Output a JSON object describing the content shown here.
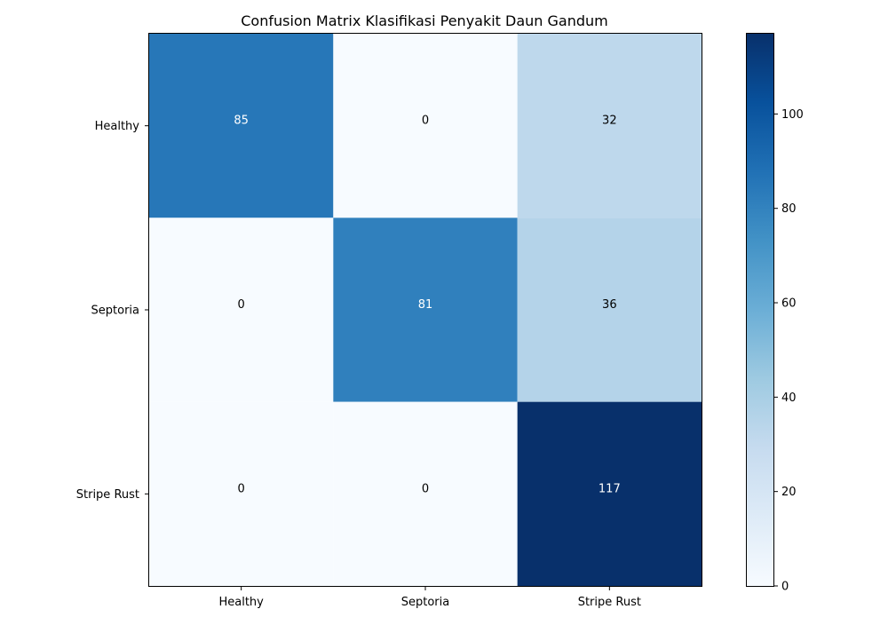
{
  "chart_data": {
    "type": "heatmap",
    "title": "Confusion Matrix Klasifikasi Penyakit Daun Gandum",
    "xlabel": "",
    "ylabel": "",
    "x_categories": [
      "Healthy",
      "Septoria",
      "Stripe Rust"
    ],
    "y_categories": [
      "Healthy",
      "Septoria",
      "Stripe Rust"
    ],
    "matrix": [
      [
        85,
        0,
        32
      ],
      [
        0,
        81,
        36
      ],
      [
        0,
        0,
        117
      ]
    ],
    "colormap": "Blues",
    "colorbar": {
      "min": 0,
      "max": 117,
      "ticks": [
        0,
        20,
        40,
        60,
        80,
        100
      ]
    },
    "text_colors": {
      "dark": "#000000",
      "light": "#ffffff"
    },
    "grid": false
  }
}
